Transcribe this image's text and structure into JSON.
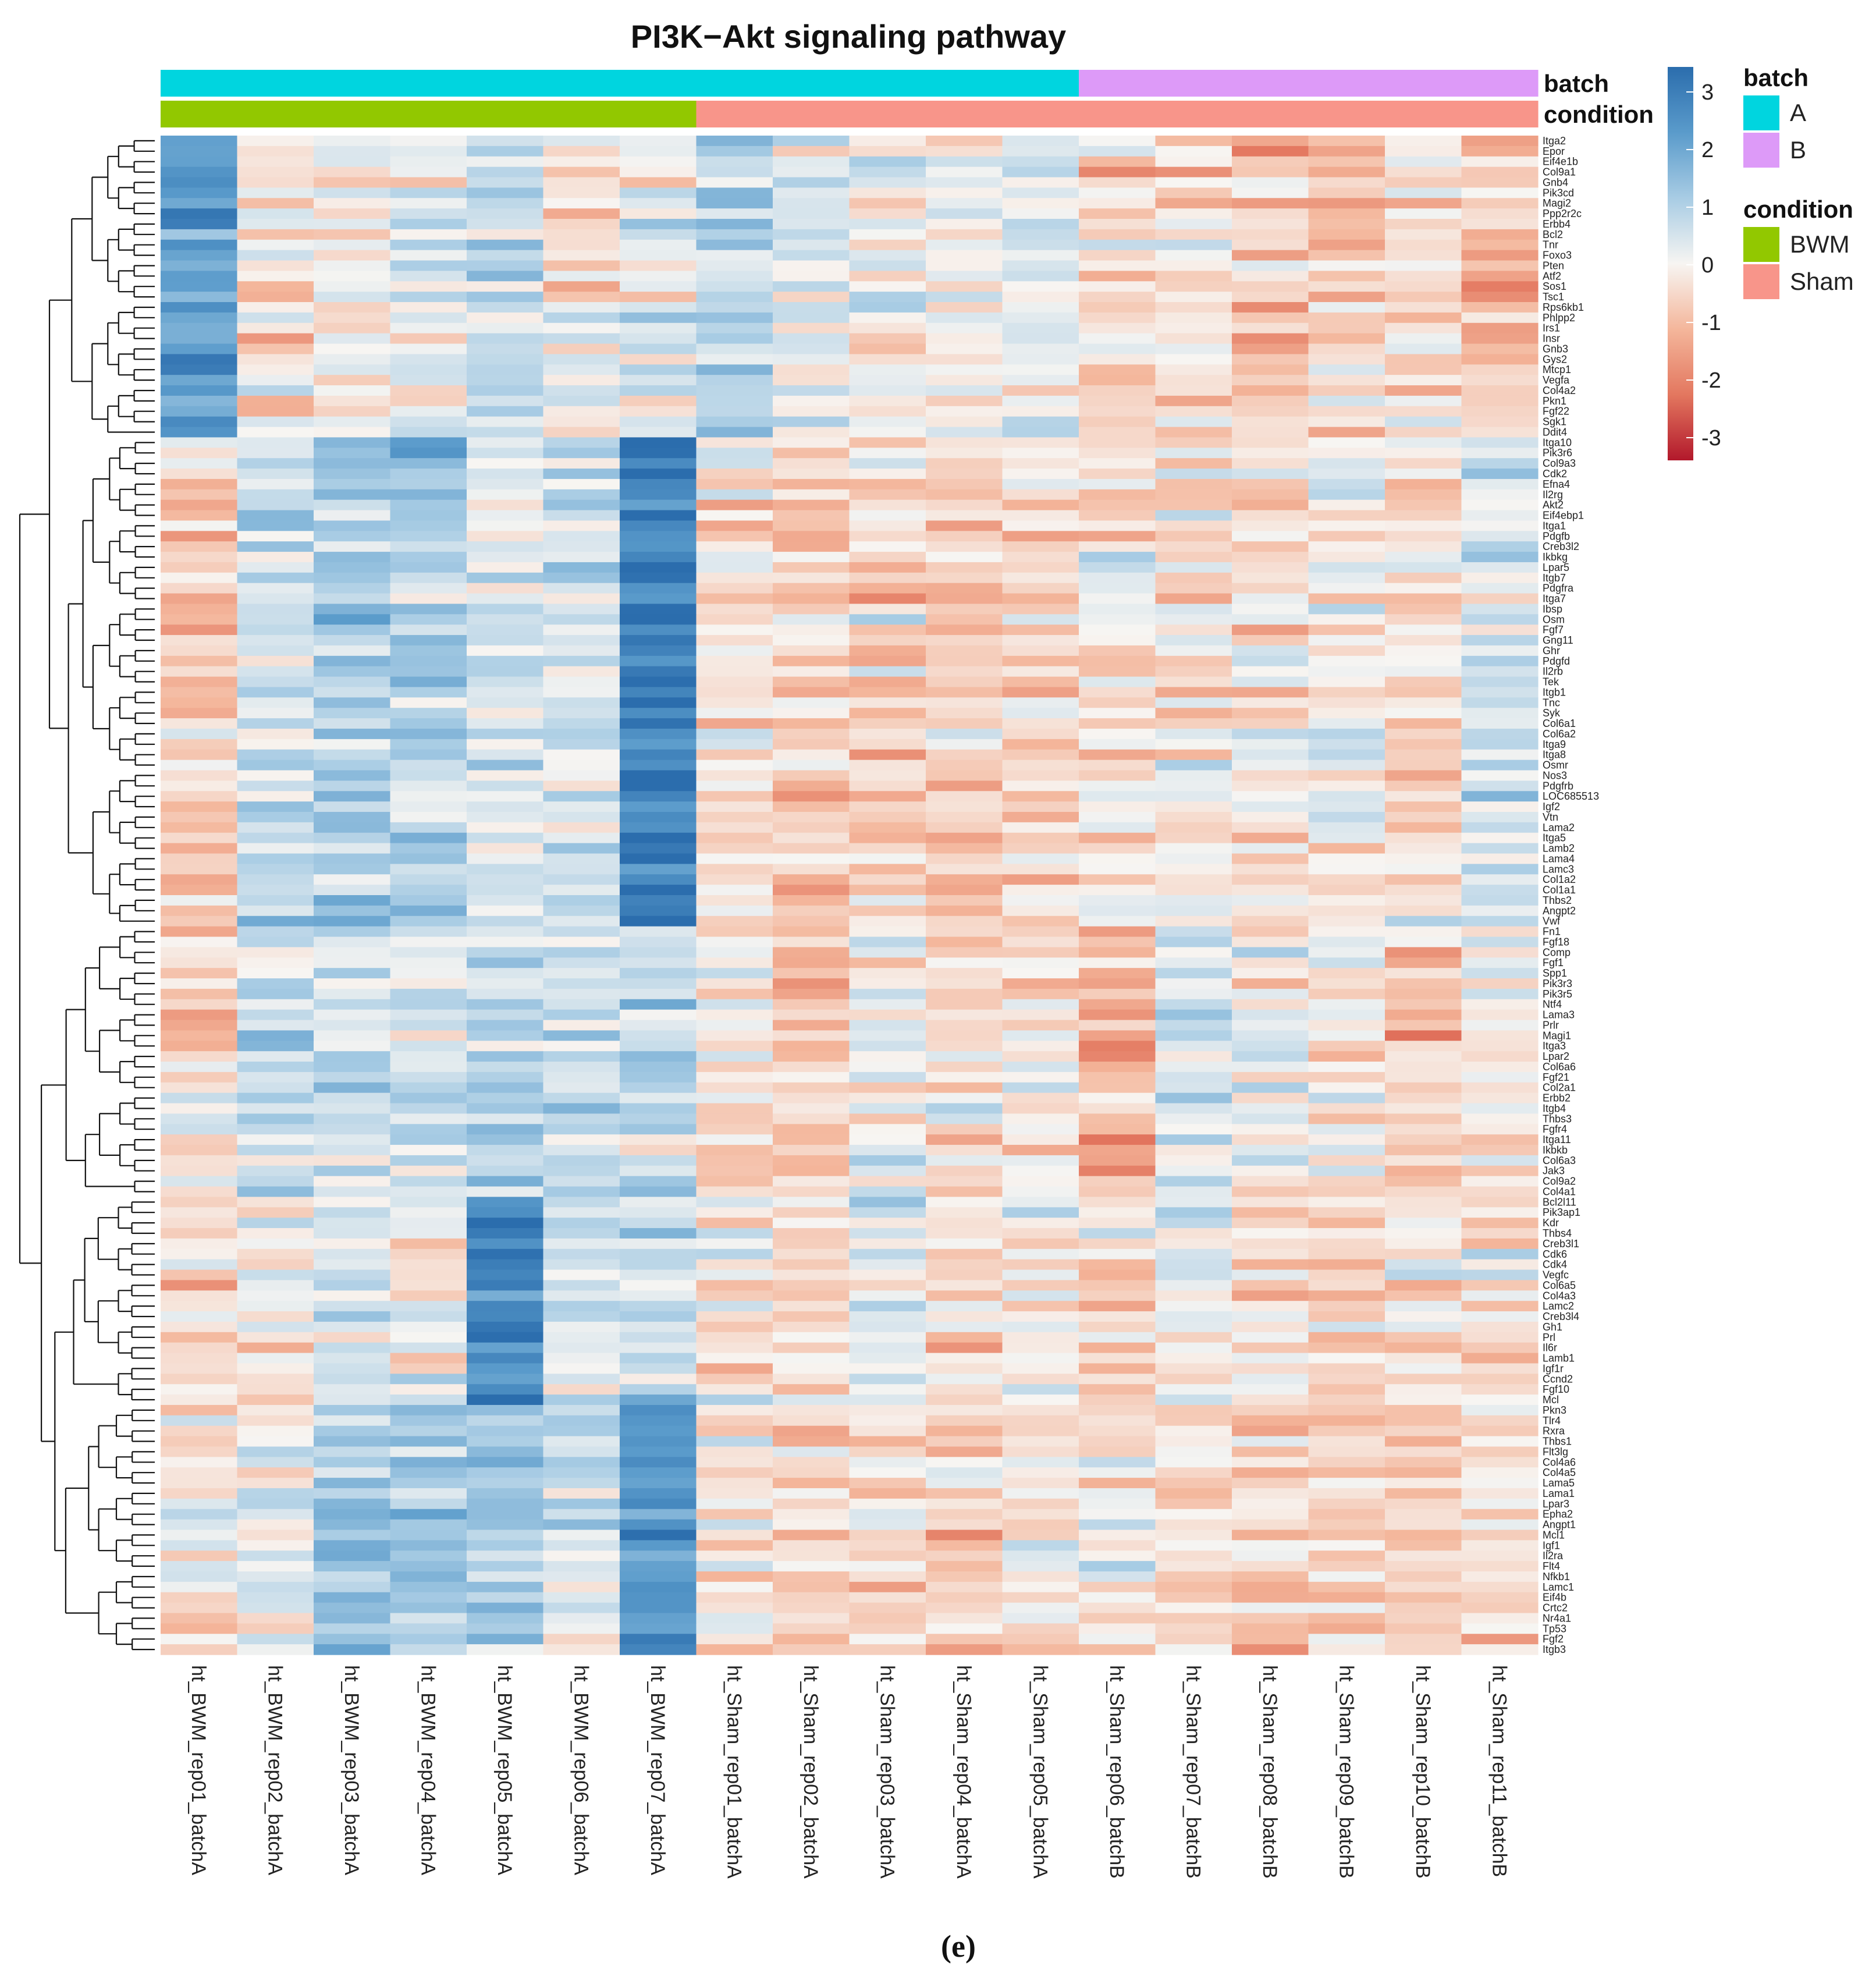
{
  "chart_data": {
    "type": "heatmap",
    "title": "PI3K−Akt signaling pathway",
    "panel_label": "(e)",
    "columns": [
      "ht_BWM_rep01_batchA",
      "ht_BWM_rep02_batchA",
      "ht_BWM_rep03_batchA",
      "ht_BWM_rep04_batchA",
      "ht_BWM_rep05_batchA",
      "ht_BWM_rep06_batchA",
      "ht_BWM_rep07_batchA",
      "ht_Sham_rep01_batchA",
      "ht_Sham_rep02_batchA",
      "ht_Sham_rep03_batchA",
      "ht_Sham_rep04_batchA",
      "ht_Sham_rep05_batchA",
      "ht_Sham_rep06_batchB",
      "ht_Sham_rep07_batchB",
      "ht_Sham_rep08_batchB",
      "ht_Sham_rep09_batchB",
      "ht_Sham_rep10_batchB",
      "ht_Sham_rep11_batchB"
    ],
    "annotation_tracks": [
      {
        "name": "batch",
        "values": [
          "A",
          "A",
          "A",
          "A",
          "A",
          "A",
          "A",
          "A",
          "A",
          "A",
          "A",
          "A",
          "B",
          "B",
          "B",
          "B",
          "B",
          "B"
        ]
      },
      {
        "name": "condition",
        "values": [
          "BWM",
          "BWM",
          "BWM",
          "BWM",
          "BWM",
          "BWM",
          "BWM",
          "Sham",
          "Sham",
          "Sham",
          "Sham",
          "Sham",
          "Sham",
          "Sham",
          "Sham",
          "Sham",
          "Sham",
          "Sham"
        ]
      }
    ],
    "legends": [
      {
        "title": "batch",
        "items": [
          {
            "label": "A",
            "color": "#00D5DF"
          },
          {
            "label": "B",
            "color": "#DD9AF8"
          }
        ]
      },
      {
        "title": "condition",
        "items": [
          {
            "label": "BWM",
            "color": "#92C800"
          },
          {
            "label": "Sham",
            "color": "#F8958A"
          }
        ]
      }
    ],
    "color_scale": {
      "min": -3,
      "max": 3,
      "ticks": [
        "3",
        "2",
        "1",
        "0",
        "-1",
        "-2",
        "-3"
      ],
      "colors": [
        "#2B6DAD",
        "#5A9BCB",
        "#A8CCE4",
        "#F7F5F2",
        "#F4B69B",
        "#E3775F",
        "#B2182B"
      ]
    },
    "genes": [
      "Itga2",
      "Epor",
      "Eif4e1b",
      "Col9a1",
      "Gnb4",
      "Pik3cd",
      "Magi2",
      "Ppp2r2c",
      "Erbb4",
      "Bcl2",
      "Tnr",
      "Foxo3",
      "Pten",
      "Atf2",
      "Sos1",
      "Tsc1",
      "Rps6kb1",
      "Phlpp2",
      "Irs1",
      "Insr",
      "Gnb3",
      "Gys2",
      "Mtcp1",
      "Vegfa",
      "Col4a2",
      "Pkn1",
      "Fgf22",
      "Sgk1",
      "Ddit4",
      "Itga10",
      "Pik3r6",
      "Col9a3",
      "Cdk2",
      "Efna4",
      "Il2rg",
      "Akt2",
      "Eif4ebp1",
      "Itga1",
      "Pdgfb",
      "Creb3l2",
      "Ikbkg",
      "Lpar5",
      "Itgb7",
      "Pdgfra",
      "Itga7",
      "Ibsp",
      "Osm",
      "Fgf7",
      "Gng11",
      "Ghr",
      "Pdgfd",
      "Il2rb",
      "Tek",
      "Itgb1",
      "Tnc",
      "Syk",
      "Col6a1",
      "Col6a2",
      "Itga9",
      "Itga8",
      "Osmr",
      "Nos3",
      "Pdgfrb",
      "LOC685513",
      "Igf2",
      "Vtn",
      "Lama2",
      "Itga5",
      "Lamb2",
      "Lama4",
      "Lamc3",
      "Col1a2",
      "Col1a1",
      "Thbs2",
      "Angpt2",
      "Vwf",
      "Fn1",
      "Fgf18",
      "Comp",
      "Fgf1",
      "Spp1",
      "Pik3r3",
      "Pik3r5",
      "Ntf4",
      "Lama3",
      "Prlr",
      "Magi1",
      "Itga3",
      "Lpar2",
      "Col6a6",
      "Fgf21",
      "Col2a1",
      "Erbb2",
      "Itgb4",
      "Thbs3",
      "Fgfr4",
      "Itga11",
      "Ikbkb",
      "Col6a3",
      "Jak3",
      "Col9a2",
      "Col4a1",
      "Bcl2l11",
      "Pik3ap1",
      "Kdr",
      "Thbs4",
      "Creb3l1",
      "Cdk6",
      "Cdk4",
      "Vegfc",
      "Col6a5",
      "Col4a3",
      "Lamc2",
      "Creb3l4",
      "Gh1",
      "Prl",
      "Il6r",
      "Lamb1",
      "Igf1r",
      "Ccnd2",
      "Fgf10",
      "Mcl",
      "Pkn3",
      "Tlr4",
      "Rxra",
      "Thbs1",
      "Flt3lg",
      "Col4a6",
      "Col4a5",
      "Lama5",
      "Lama1",
      "Lpar3",
      "Epha2",
      "Angpt1",
      "Mcl1",
      "Igf1",
      "Il2ra",
      "Flt4",
      "Nfkb1",
      "Lamc1",
      "Eif4b",
      "Crtc2",
      "Nr4a1",
      "Tp53",
      "Fgf2",
      "Itgb3"
    ],
    "profiles": [
      {
        "name": "top-block",
        "genes_from": "Itga2",
        "genes_to": "Ddit4",
        "column_means": [
          2.0,
          -0.3,
          -0.1,
          0.2,
          0.6,
          -0.1,
          0.3,
          0.9,
          0.2,
          -0.1,
          0.0,
          0.3,
          -0.5,
          -0.3,
          -0.8,
          -0.6,
          -0.4,
          -0.9
        ]
      },
      {
        "name": "bwm-rep07-block",
        "genes_from": "Itga10",
        "genes_to": "Vwf",
        "column_means": [
          -0.6,
          0.6,
          1.0,
          0.8,
          0.2,
          0.4,
          2.5,
          -0.3,
          -0.7,
          -0.5,
          -0.5,
          -0.4,
          -0.1,
          -0.3,
          -0.2,
          -0.1,
          -0.3,
          0.4
        ]
      },
      {
        "name": "mid-block",
        "genes_from": "Fn1",
        "genes_to": "Col4a1",
        "column_means": [
          -0.4,
          0.6,
          0.5,
          0.5,
          0.8,
          0.5,
          0.8,
          -0.2,
          -0.8,
          0.1,
          -0.3,
          -0.2,
          -1.2,
          0.3,
          -0.1,
          -0.2,
          -0.8,
          -0.1
        ]
      },
      {
        "name": "bwm-rep05-block",
        "genes_from": "Bcl2l11",
        "genes_to": "Mcl",
        "column_means": [
          -0.3,
          0.0,
          0.2,
          0.0,
          2.4,
          0.4,
          0.6,
          -0.2,
          -0.4,
          0.2,
          -0.2,
          -0.2,
          -0.3,
          0.1,
          -0.2,
          -0.5,
          -0.1,
          -0.2
        ]
      },
      {
        "name": "bottom-block",
        "genes_from": "Pkn3",
        "genes_to": "Itgb3",
        "column_means": [
          -0.3,
          0.3,
          1.0,
          1.0,
          1.2,
          0.5,
          2.0,
          -0.2,
          -0.4,
          -0.3,
          -0.5,
          -0.3,
          -0.1,
          -0.4,
          -0.7,
          -0.5,
          -0.6,
          -0.3
        ]
      }
    ]
  }
}
